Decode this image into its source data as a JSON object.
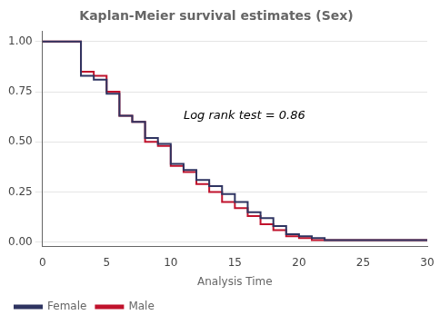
{
  "chart_data": {
    "type": "step",
    "title": "Kaplan-Meier survival estimates (Sex)",
    "xlabel": "Analysis Time",
    "x": [
      0,
      3,
      4,
      5,
      6,
      7,
      8,
      9,
      10,
      11,
      12,
      13,
      14,
      15,
      16,
      17,
      18,
      19,
      20,
      21,
      22,
      23,
      25,
      28,
      30
    ],
    "series": [
      {
        "name": "Female",
        "color": "#2f3461",
        "values": [
          1.0,
          1.0,
          0.83,
          0.81,
          0.74,
          0.63,
          0.6,
          0.52,
          0.49,
          0.39,
          0.36,
          0.31,
          0.28,
          0.24,
          0.2,
          0.15,
          0.12,
          0.08,
          0.04,
          0.03,
          0.02,
          0.01,
          0.01,
          0.01,
          0.01
        ]
      },
      {
        "name": "Male",
        "color": "#c0122c",
        "values": [
          1.0,
          1.0,
          0.85,
          0.83,
          0.75,
          0.63,
          0.6,
          0.5,
          0.48,
          0.38,
          0.35,
          0.29,
          0.25,
          0.2,
          0.17,
          0.13,
          0.09,
          0.06,
          0.03,
          0.02,
          0.01,
          0.01,
          0.01,
          0.01,
          0.01
        ]
      }
    ],
    "xlim": [
      0,
      30
    ],
    "xticks": [
      0,
      5,
      10,
      15,
      20,
      25,
      30
    ],
    "ylim": [
      -0.02,
      1.05
    ],
    "yticks": [
      {
        "value": 0.0,
        "label": "0.00"
      },
      {
        "value": 0.25,
        "label": "0.25"
      },
      {
        "value": 0.5,
        "label": "0.50"
      },
      {
        "value": 0.75,
        "label": "0.75"
      },
      {
        "value": 1.0,
        "label": "1.00"
      }
    ],
    "annotations": [
      {
        "text": "Log rank test = 0.86",
        "x": 11.0,
        "y": 0.6
      }
    ],
    "grid": "y",
    "legend": "bottom"
  }
}
